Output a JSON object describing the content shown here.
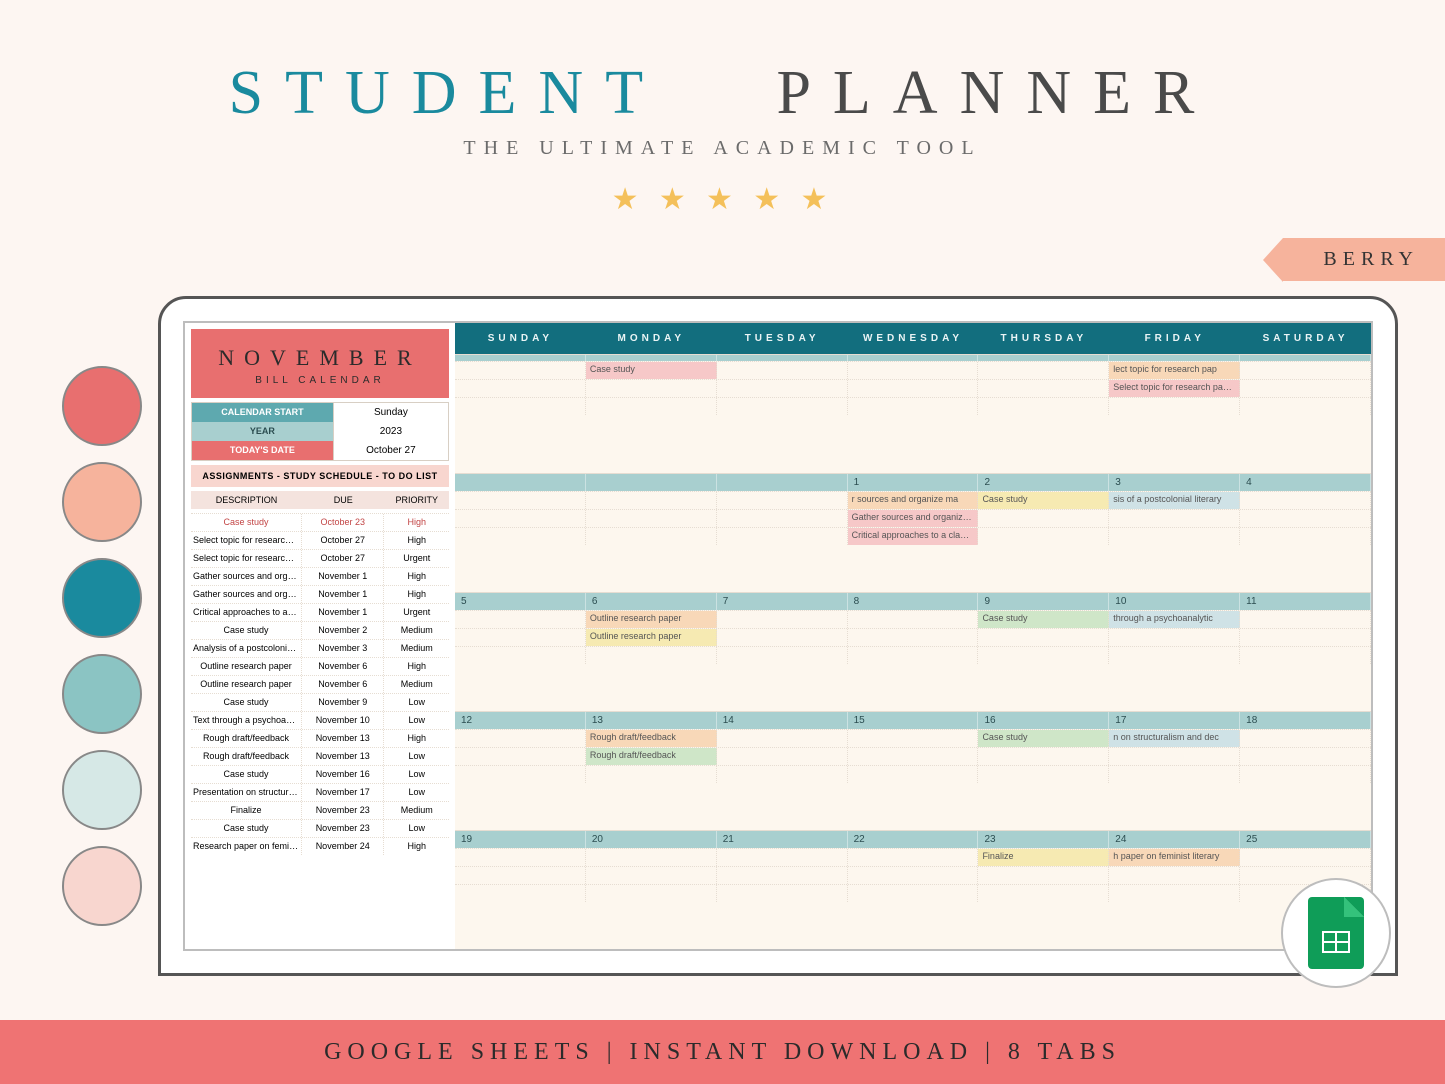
{
  "header": {
    "title_word1": "STUDENT",
    "title_word2": "PLANNER",
    "tagline": "THE ULTIMATE ACADEMIC TOOL",
    "stars": 5,
    "ribbon_label": "BERRY"
  },
  "palette_colors": [
    "#e86f6f",
    "#f6b39c",
    "#1a8a9e",
    "#8bc4c3",
    "#d6e8e6",
    "#f8d6cf"
  ],
  "sidebar": {
    "month": "NOVEMBER",
    "month_sub": "BILL CALENDAR",
    "settings": [
      {
        "label": "CALENDAR START",
        "value": "Sunday",
        "bg": "#5ea9af"
      },
      {
        "label": "YEAR",
        "value": "2023",
        "bg": "#a8cfcf"
      },
      {
        "label": "TODAY'S DATE",
        "value": "October 27",
        "bg": "#e86f6f"
      }
    ],
    "assign_title": "ASSIGNMENTS - STUDY SCHEDULE - TO DO LIST",
    "columns": [
      "DESCRIPTION",
      "DUE",
      "PRIORITY"
    ],
    "rows": [
      {
        "d": "Case study",
        "due": "October 23",
        "p": "High",
        "hi": true
      },
      {
        "d": "Select topic for research paper",
        "due": "October 27",
        "p": "High"
      },
      {
        "d": "Select topic for research paper",
        "due": "October 27",
        "p": "Urgent"
      },
      {
        "d": "Gather sources and organize material",
        "due": "November 1",
        "p": "High"
      },
      {
        "d": "Gather sources and organize material",
        "due": "November 1",
        "p": "High"
      },
      {
        "d": "Critical approaches to a classic novel",
        "due": "November 1",
        "p": "Urgent"
      },
      {
        "d": "Case study",
        "due": "November 2",
        "p": "Medium"
      },
      {
        "d": "Analysis of a postcolonial literary",
        "due": "November 3",
        "p": "Medium"
      },
      {
        "d": "Outline research paper",
        "due": "November 6",
        "p": "High"
      },
      {
        "d": "Outline research paper",
        "due": "November 6",
        "p": "Medium"
      },
      {
        "d": "Case study",
        "due": "November 9",
        "p": "Low"
      },
      {
        "d": "Text through a psychoanalytic lens",
        "due": "November 10",
        "p": "Low"
      },
      {
        "d": "Rough draft/feedback",
        "due": "November 13",
        "p": "High"
      },
      {
        "d": "Rough draft/feedback",
        "due": "November 13",
        "p": "Low"
      },
      {
        "d": "Case study",
        "due": "November 16",
        "p": "Low"
      },
      {
        "d": "Presentation on structuralism and",
        "due": "November 17",
        "p": "Low"
      },
      {
        "d": "Finalize",
        "due": "November 23",
        "p": "Medium"
      },
      {
        "d": "Case study",
        "due": "November 23",
        "p": "Low"
      },
      {
        "d": "Research paper on feminist literary theory",
        "due": "November 24",
        "p": "High"
      }
    ]
  },
  "calendar": {
    "day_labels": [
      "SUNDAY",
      "MONDAY",
      "TUESDAY",
      "WEDNESDAY",
      "THURSDAY",
      "FRIDAY",
      "SATURDAY"
    ],
    "weeks": [
      {
        "dates": [
          "",
          "",
          "",
          "",
          "",
          "",
          ""
        ],
        "events": [
          [
            null,
            {
              "t": "Case study",
              "c": "ev-pink"
            },
            null,
            null,
            null,
            {
              "t": "lect topic for research pap",
              "c": "ev-peach"
            },
            null
          ],
          [
            null,
            null,
            null,
            null,
            null,
            {
              "t": "Select topic for research paper",
              "c": "ev-pink"
            },
            null
          ]
        ]
      },
      {
        "dates": [
          "",
          "",
          "",
          "1",
          "2",
          "3",
          "4"
        ],
        "events": [
          [
            null,
            null,
            null,
            {
              "t": "r sources and organize ma",
              "c": "ev-peach"
            },
            {
              "t": "Case study",
              "c": "ev-yellow"
            },
            {
              "t": "sis of a postcolonial literary",
              "c": "ev-blue"
            },
            null
          ],
          [
            null,
            null,
            null,
            {
              "t": "Gather sources and organize material",
              "c": "ev-pink"
            },
            null,
            null,
            null
          ],
          [
            null,
            null,
            null,
            {
              "t": "Critical approaches to a classic novel",
              "c": "ev-pink"
            },
            null,
            null,
            null
          ]
        ]
      },
      {
        "dates": [
          "5",
          "6",
          "7",
          "8",
          "9",
          "10",
          "11"
        ],
        "events": [
          [
            null,
            {
              "t": "Outline research paper",
              "c": "ev-peach"
            },
            null,
            null,
            {
              "t": "Case study",
              "c": "ev-green"
            },
            {
              "t": "through a psychoanalytic",
              "c": "ev-blue"
            },
            null
          ],
          [
            null,
            {
              "t": "Outline research paper",
              "c": "ev-yellow"
            },
            null,
            null,
            null,
            null,
            null
          ]
        ]
      },
      {
        "dates": [
          "12",
          "13",
          "14",
          "15",
          "16",
          "17",
          "18"
        ],
        "events": [
          [
            null,
            {
              "t": "Rough draft/feedback",
              "c": "ev-peach"
            },
            null,
            null,
            {
              "t": "Case study",
              "c": "ev-green"
            },
            {
              "t": "n on structuralism and dec",
              "c": "ev-blue"
            },
            null
          ],
          [
            null,
            {
              "t": "Rough draft/feedback",
              "c": "ev-green"
            },
            null,
            null,
            null,
            null,
            null
          ]
        ]
      },
      {
        "dates": [
          "19",
          "20",
          "21",
          "22",
          "23",
          "24",
          "25"
        ],
        "events": [
          [
            null,
            null,
            null,
            null,
            {
              "t": "Finalize",
              "c": "ev-yellow"
            },
            {
              "t": "h paper on feminist literary",
              "c": "ev-peach"
            },
            null
          ]
        ]
      }
    ]
  },
  "footer": {
    "text": "GOOGLE SHEETS | INSTANT DOWNLOAD | 8 TABS"
  }
}
